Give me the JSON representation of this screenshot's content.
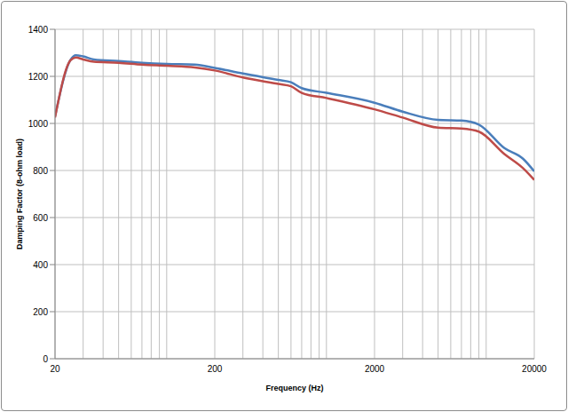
{
  "chart_data": {
    "type": "line",
    "x_label": "Frequency (Hz)",
    "y_label": "Damping Factor (8-ohm load)",
    "x": [
      20,
      25,
      27,
      30,
      35,
      50,
      70,
      100,
      150,
      200,
      300,
      500,
      600,
      700,
      1000,
      2000,
      3000,
      5000,
      7000,
      9000,
      13000,
      17000,
      20000
    ],
    "series": [
      {
        "color": "#4a7ebb",
        "values": [
          1030,
          1270,
          1290,
          1285,
          1272,
          1265,
          1258,
          1253,
          1250,
          1236,
          1212,
          1185,
          1175,
          1150,
          1130,
          1088,
          1050,
          1015,
          1012,
          995,
          895,
          850,
          796
        ]
      },
      {
        "color": "#be4b48",
        "values": [
          1025,
          1268,
          1280,
          1272,
          1262,
          1258,
          1250,
          1245,
          1238,
          1225,
          1195,
          1168,
          1158,
          1130,
          1108,
          1060,
          1025,
          982,
          978,
          965,
          870,
          810,
          760
        ]
      }
    ],
    "xlim": [
      20,
      20000
    ],
    "xticks": [
      20,
      200,
      2000,
      20000
    ],
    "ylim": [
      0,
      1400
    ],
    "yticks": [
      0,
      200,
      400,
      600,
      800,
      1000,
      1200,
      1400
    ],
    "log": "x",
    "grid": true
  }
}
